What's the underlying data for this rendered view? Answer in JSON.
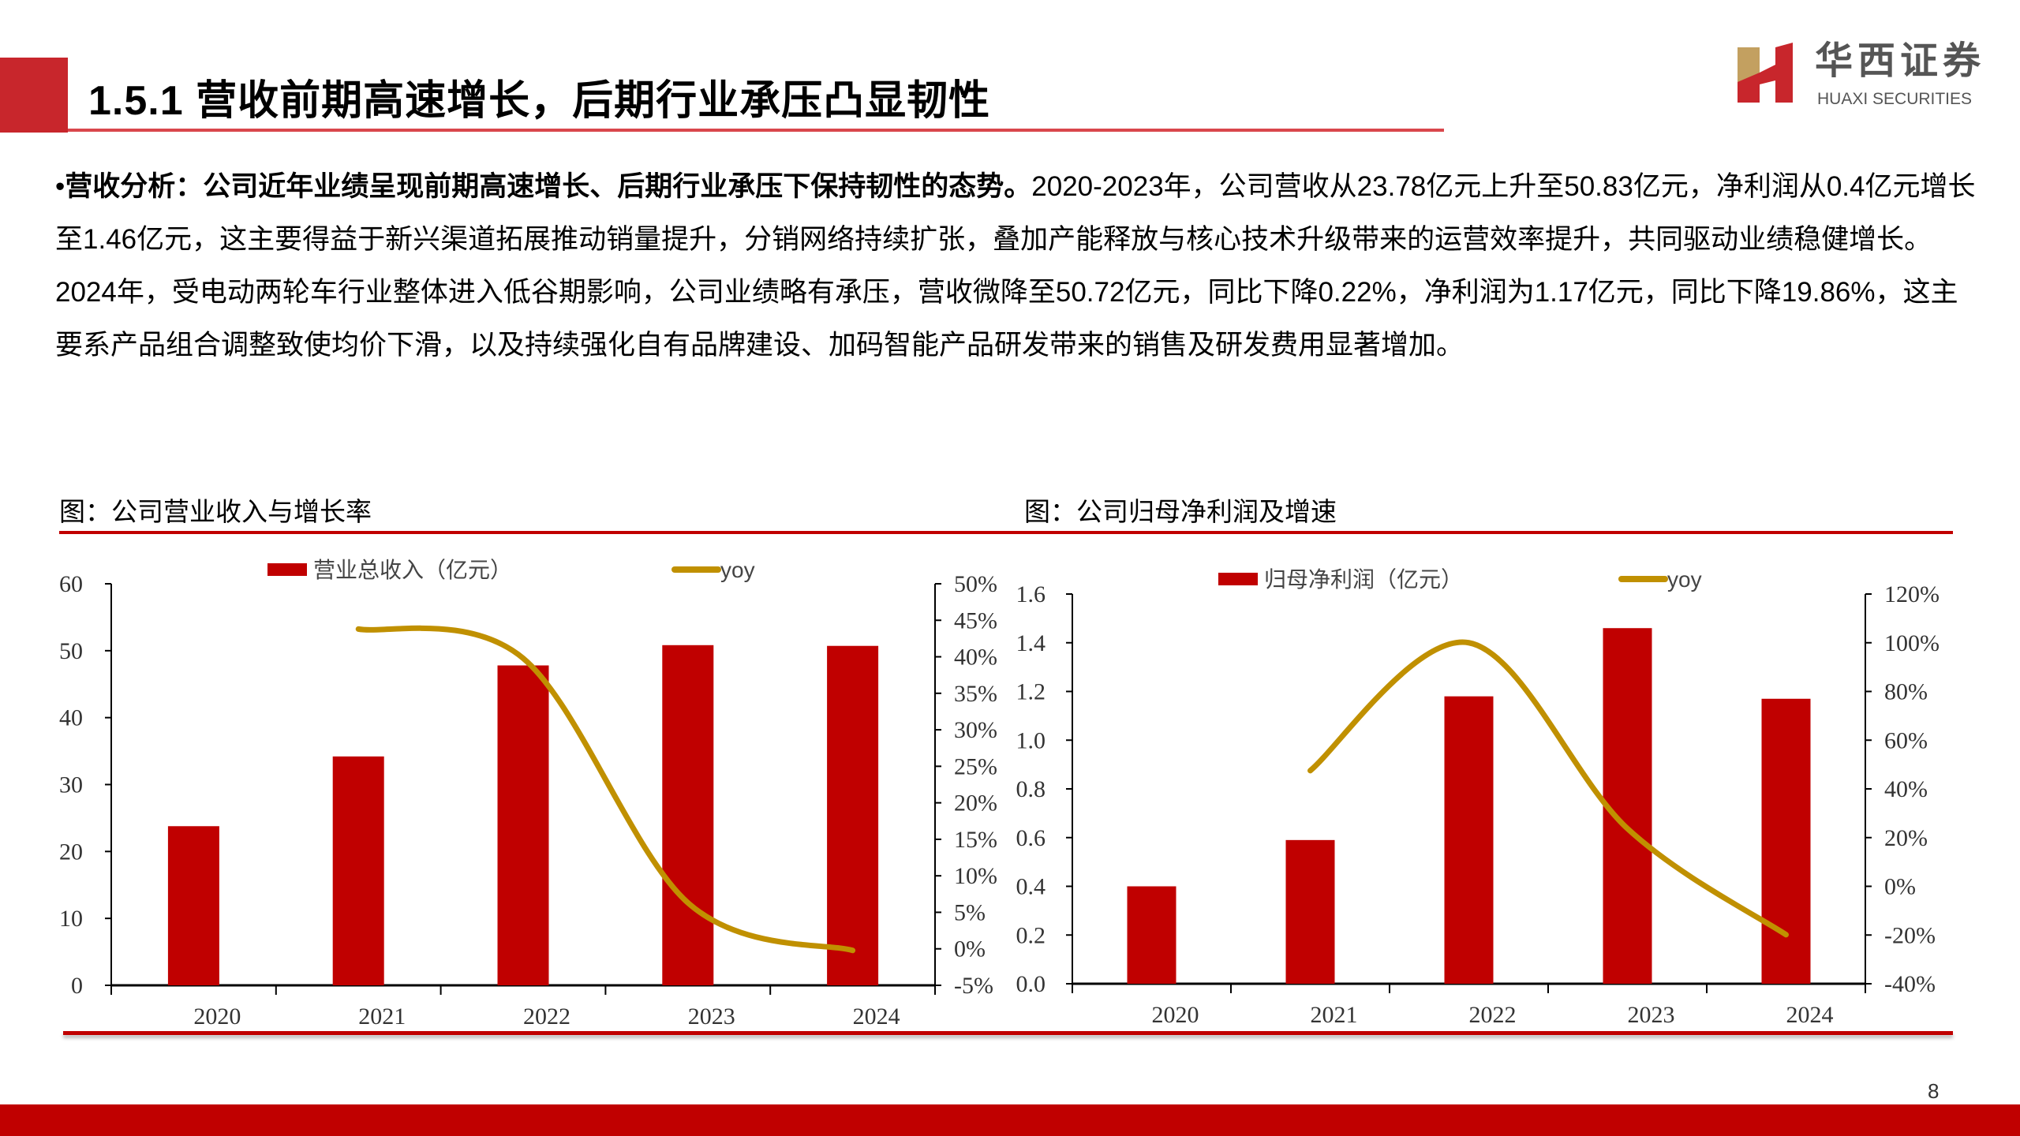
{
  "header": {
    "title": "1.5.1 营收前期高速增长，后期行业承压凸显韧性",
    "logo_cn": "华西证券",
    "logo_en": "HUAXI SECURITIES",
    "accent": "#c8262c"
  },
  "paragraph": {
    "bullet": "•",
    "bold": "营收分析：公司近年业绩呈现前期高速增长、后期行业承压下保持韧性的态势。",
    "body": "2020-2023年，公司营收从23.78亿元上升至50.83亿元，净利润从0.4亿元增长至1.46亿元，这主要得益于新兴渠道拓展推动销量提升，分销网络持续扩张，叠加产能释放与核心技术升级带来的运营效率提升，共同驱动业绩稳健增长。2024年，受电动两轮车行业整体进入低谷期影响，公司业绩略有承压，营收微降至50.72亿元，同比下降0.22%，净利润为1.17亿元，同比下降19.86%，这主要系产品组合调整致使均价下滑，以及持续强化自有品牌建设、加码智能产品研发带来的销售及研发费用显著增加。"
  },
  "footer": {
    "page_number": "8"
  },
  "chart_data": [
    {
      "type": "bar",
      "title": "图：公司营业收入与增长率",
      "categories": [
        "2020",
        "2021",
        "2022",
        "2023",
        "2024"
      ],
      "series": [
        {
          "name": "营业总收入（亿元）",
          "type": "bar",
          "axis": "left",
          "color": "#c00000",
          "values": [
            23.78,
            34.2,
            47.8,
            50.83,
            50.72
          ]
        },
        {
          "name": "yoy",
          "type": "line",
          "axis": "right",
          "color": "#c09000",
          "values": [
            null,
            43.8,
            39.8,
            6.3,
            -0.22
          ]
        }
      ],
      "ylim": [
        0,
        60
      ],
      "yticks": [
        "0",
        "10",
        "20",
        "30",
        "40",
        "50",
        "60"
      ],
      "y2lim": [
        -5,
        50
      ],
      "y2ticks": [
        "-5%",
        "0%",
        "5%",
        "10%",
        "15%",
        "20%",
        "25%",
        "30%",
        "35%",
        "40%",
        "45%",
        "50%"
      ],
      "legend": "top",
      "grid": false
    },
    {
      "type": "bar",
      "title": "图：公司归母净利润及增速",
      "categories": [
        "2020",
        "2021",
        "2022",
        "2023",
        "2024"
      ],
      "series": [
        {
          "name": "归母净利润（亿元）",
          "type": "bar",
          "axis": "left",
          "color": "#c00000",
          "values": [
            0.4,
            0.59,
            1.18,
            1.46,
            1.17
          ]
        },
        {
          "name": "yoy",
          "type": "line",
          "axis": "right",
          "color": "#c09000",
          "values": [
            null,
            47.5,
            100,
            23.7,
            -19.86
          ]
        }
      ],
      "ylim": [
        0,
        1.6
      ],
      "yticks": [
        "0.0",
        "0.2",
        "0.4",
        "0.6",
        "0.8",
        "1.0",
        "1.2",
        "1.4",
        "1.6"
      ],
      "y2lim": [
        -40,
        120
      ],
      "y2ticks": [
        "-40%",
        "-20%",
        "0%",
        "20%",
        "40%",
        "60%",
        "80%",
        "100%",
        "120%"
      ],
      "legend": "top",
      "grid": false
    }
  ]
}
